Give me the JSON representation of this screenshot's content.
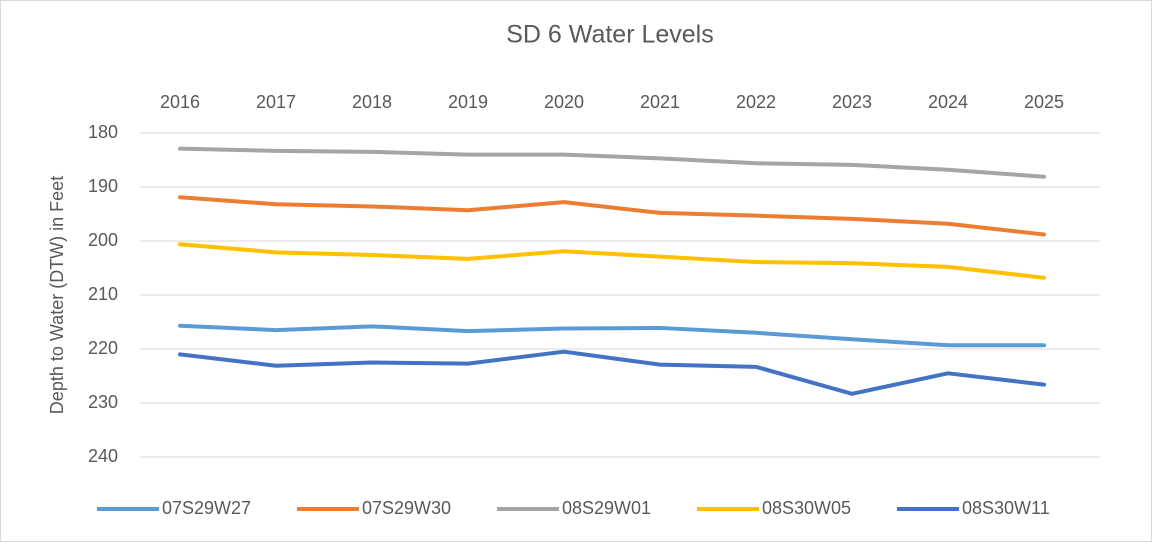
{
  "chart_data": {
    "type": "line",
    "title": "SD 6 Water Levels",
    "y_label": "Depth to Water (DTW) in Feet",
    "categories": [
      "2016",
      "2017",
      "2018",
      "2019",
      "2020",
      "2021",
      "2022",
      "2023",
      "2024",
      "2025"
    ],
    "series": [
      {
        "name": "07S29W27",
        "color": "#5b9bd5",
        "values": [
          215.7,
          216.5,
          215.8,
          216.7,
          216.2,
          216.1,
          217.0,
          218.2,
          219.3,
          219.3
        ]
      },
      {
        "name": "07S29W30",
        "color": "#ed7d31",
        "values": [
          191.9,
          193.2,
          193.6,
          194.3,
          192.8,
          194.8,
          195.3,
          195.9,
          196.8,
          198.8
        ]
      },
      {
        "name": "08S29W01",
        "color": "#a5a5a5",
        "values": [
          182.9,
          183.3,
          183.5,
          184.0,
          184.0,
          184.7,
          185.6,
          185.9,
          186.8,
          188.1
        ]
      },
      {
        "name": "08S30W05",
        "color": "#ffc000",
        "values": [
          200.6,
          202.1,
          202.6,
          203.3,
          201.9,
          202.9,
          203.9,
          204.1,
          204.8,
          206.8
        ]
      },
      {
        "name": "08S30W11",
        "color": "#4472c4",
        "values": [
          221.0,
          223.1,
          222.5,
          222.7,
          220.5,
          222.9,
          223.3,
          228.3,
          224.5,
          226.6
        ]
      }
    ],
    "ylim": [
      180,
      240
    ],
    "yticks": [
      180,
      190,
      200,
      210,
      220,
      230,
      240
    ],
    "y_inverted": true,
    "grid": true,
    "legend": "bottom"
  }
}
